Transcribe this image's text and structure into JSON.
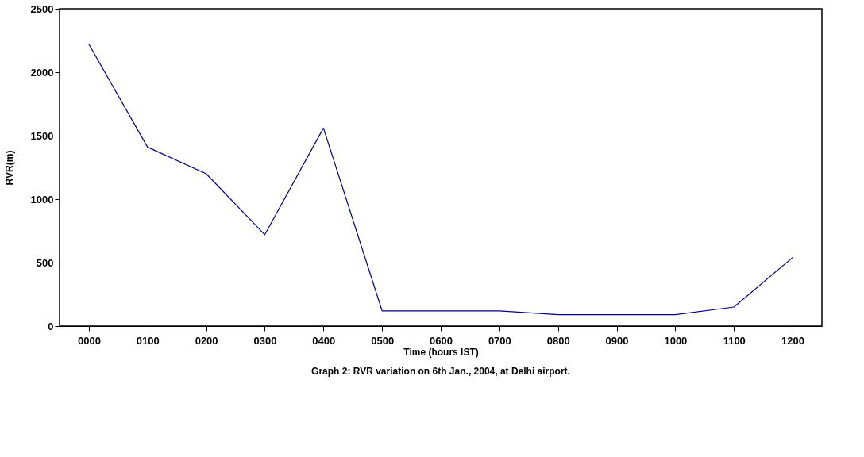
{
  "chart_data": {
    "type": "line",
    "xlabel": "Time (hours IST)",
    "ylabel": "RVR(m)",
    "categories": [
      "0000",
      "0100",
      "0200",
      "0300",
      "0400",
      "0500",
      "0600",
      "0700",
      "0800",
      "0900",
      "1000",
      "1100",
      "1200"
    ],
    "series": [
      {
        "color": "#000080",
        "values": [
          2220,
          1410,
          1200,
          720,
          1560,
          120,
          120,
          120,
          90,
          90,
          90,
          150,
          540
        ]
      }
    ],
    "ylim": [
      0,
      2500
    ],
    "yticks": [
      0,
      500,
      1000,
      1500,
      2000,
      2500
    ],
    "grid": false,
    "marker": "none",
    "line_style": "solid",
    "annotations": [
      "Graph 2:  RVR variation on 6th Jan., 2004, at Delhi airport."
    ]
  }
}
